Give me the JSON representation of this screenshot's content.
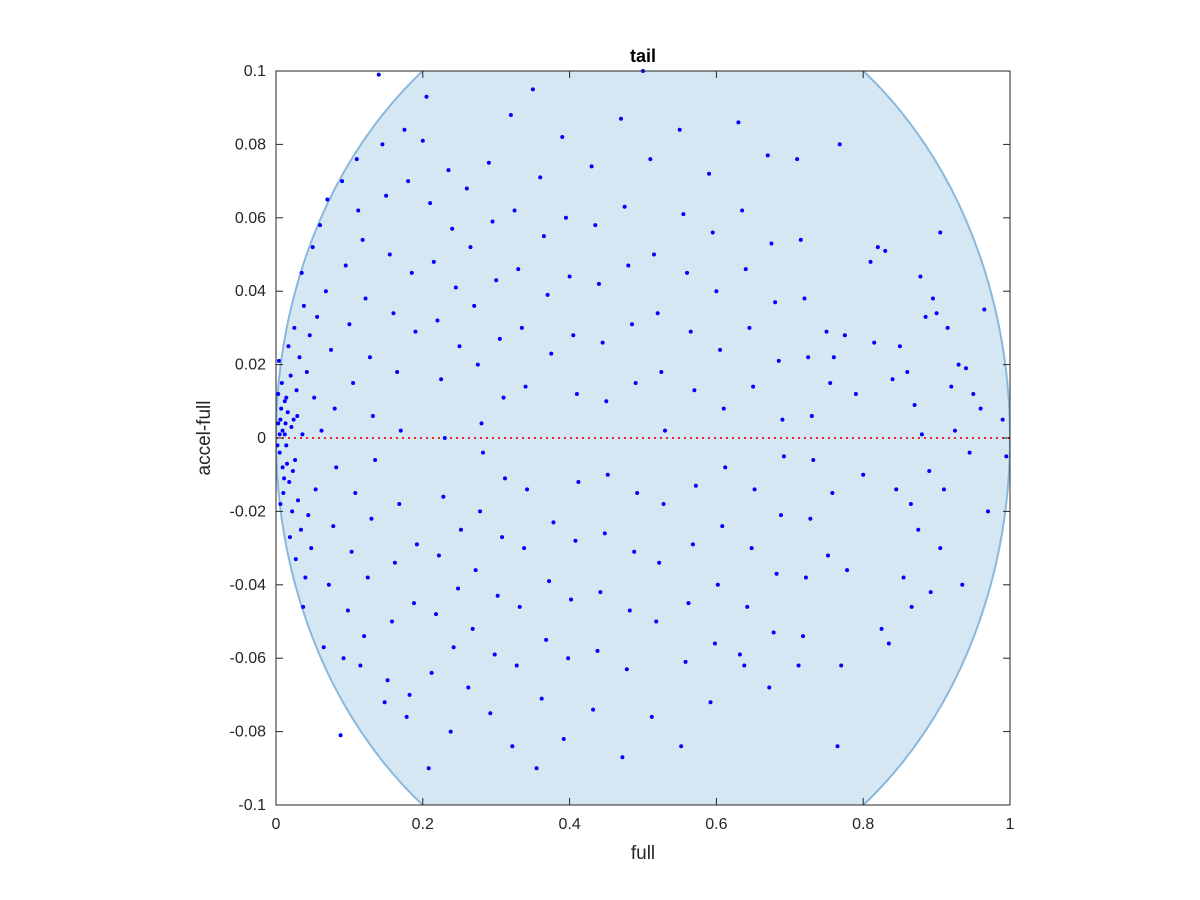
{
  "chart_data": {
    "type": "scatter",
    "title": "tail",
    "xlabel": "full",
    "ylabel": "accel-full",
    "xlim": [
      0,
      1
    ],
    "ylim": [
      -0.1,
      0.1
    ],
    "xticks": [
      0,
      0.2,
      0.4,
      0.6,
      0.8,
      1
    ],
    "xtick_labels": [
      "0",
      "0.2",
      "0.4",
      "0.6",
      "0.8",
      "1"
    ],
    "yticks": [
      -0.1,
      -0.08,
      -0.06,
      -0.04,
      -0.02,
      0,
      0.02,
      0.04,
      0.06,
      0.08,
      0.1
    ],
    "ytick_labels": [
      "-0.1",
      "-0.08",
      "-0.06",
      "-0.04",
      "-0.02",
      "0",
      "0.02",
      "0.04",
      "0.06",
      "0.08",
      "0.1"
    ],
    "grid": false,
    "region": {
      "shape": "ellipse",
      "center": [
        0.5,
        0.0
      ],
      "x_radius": 0.5,
      "y_radius": 0.125
    },
    "reference_line": {
      "y": 0,
      "style": "dotted"
    },
    "points": [
      [
        0.003,
        0.012
      ],
      [
        0.005,
        -0.004
      ],
      [
        0.007,
        0.008
      ],
      [
        0.009,
        0.002
      ],
      [
        0.011,
        -0.011
      ],
      [
        0.004,
        0.021
      ],
      [
        0.006,
        -0.018
      ],
      [
        0.013,
        0.004
      ],
      [
        0.015,
        -0.007
      ],
      [
        0.008,
        0.015
      ],
      [
        0.01,
        -0.015
      ],
      [
        0.012,
        0.01
      ],
      [
        0.014,
        -0.002
      ],
      [
        0.016,
        0.007
      ],
      [
        0.018,
        -0.012
      ],
      [
        0.02,
        0.017
      ],
      [
        0.022,
        -0.02
      ],
      [
        0.017,
        0.025
      ],
      [
        0.019,
        -0.027
      ],
      [
        0.024,
        0.005
      ],
      [
        0.026,
        -0.006
      ],
      [
        0.028,
        0.013
      ],
      [
        0.03,
        -0.017
      ],
      [
        0.025,
        0.03
      ],
      [
        0.027,
        -0.033
      ],
      [
        0.032,
        0.022
      ],
      [
        0.034,
        -0.025
      ],
      [
        0.036,
        0.001
      ],
      [
        0.038,
        0.036
      ],
      [
        0.04,
        -0.038
      ],
      [
        0.035,
        0.045
      ],
      [
        0.037,
        -0.046
      ],
      [
        0.042,
        0.018
      ],
      [
        0.044,
        -0.021
      ],
      [
        0.046,
        0.028
      ],
      [
        0.048,
        -0.03
      ],
      [
        0.05,
        0.052
      ],
      [
        0.052,
        0.011
      ],
      [
        0.054,
        -0.014
      ],
      [
        0.056,
        0.033
      ],
      [
        0.005,
        0.001
      ],
      [
        0.006,
        0.005
      ],
      [
        0.002,
        -0.002
      ],
      [
        0.009,
        -0.008
      ],
      [
        0.003,
        0.004
      ],
      [
        0.012,
        0.001
      ],
      [
        0.014,
        0.011
      ],
      [
        0.021,
        0.003
      ],
      [
        0.023,
        -0.009
      ],
      [
        0.029,
        0.006
      ],
      [
        0.06,
        0.058
      ],
      [
        0.065,
        -0.057
      ],
      [
        0.07,
        0.065
      ],
      [
        0.068,
        0.04
      ],
      [
        0.072,
        -0.04
      ],
      [
        0.075,
        0.024
      ],
      [
        0.078,
        -0.024
      ],
      [
        0.08,
        0.008
      ],
      [
        0.082,
        -0.008
      ],
      [
        0.062,
        0.002
      ],
      [
        0.09,
        0.07
      ],
      [
        0.092,
        -0.06
      ],
      [
        0.088,
        -0.081
      ],
      [
        0.095,
        0.047
      ],
      [
        0.098,
        -0.047
      ],
      [
        0.1,
        0.031
      ],
      [
        0.103,
        -0.031
      ],
      [
        0.105,
        0.015
      ],
      [
        0.108,
        -0.015
      ],
      [
        0.11,
        0.076
      ],
      [
        0.112,
        0.062
      ],
      [
        0.115,
        -0.062
      ],
      [
        0.118,
        0.054
      ],
      [
        0.12,
        -0.054
      ],
      [
        0.122,
        0.038
      ],
      [
        0.125,
        -0.038
      ],
      [
        0.128,
        0.022
      ],
      [
        0.13,
        -0.022
      ],
      [
        0.132,
        0.006
      ],
      [
        0.135,
        -0.006
      ],
      [
        0.14,
        0.099
      ],
      [
        0.145,
        0.08
      ],
      [
        0.148,
        -0.072
      ],
      [
        0.15,
        0.066
      ],
      [
        0.152,
        -0.066
      ],
      [
        0.155,
        0.05
      ],
      [
        0.158,
        -0.05
      ],
      [
        0.16,
        0.034
      ],
      [
        0.162,
        -0.034
      ],
      [
        0.165,
        0.018
      ],
      [
        0.168,
        -0.018
      ],
      [
        0.17,
        0.002
      ],
      [
        0.175,
        0.084
      ],
      [
        0.178,
        -0.076
      ],
      [
        0.18,
        0.07
      ],
      [
        0.182,
        -0.07
      ],
      [
        0.185,
        0.045
      ],
      [
        0.188,
        -0.045
      ],
      [
        0.19,
        0.029
      ],
      [
        0.192,
        -0.029
      ],
      [
        0.2,
        0.081
      ],
      [
        0.205,
        0.093
      ],
      [
        0.208,
        -0.09
      ],
      [
        0.21,
        0.064
      ],
      [
        0.212,
        -0.064
      ],
      [
        0.215,
        0.048
      ],
      [
        0.218,
        -0.048
      ],
      [
        0.22,
        0.032
      ],
      [
        0.222,
        -0.032
      ],
      [
        0.225,
        0.016
      ],
      [
        0.228,
        -0.016
      ],
      [
        0.23,
        0.0
      ],
      [
        0.235,
        0.073
      ],
      [
        0.238,
        -0.08
      ],
      [
        0.24,
        0.057
      ],
      [
        0.242,
        -0.057
      ],
      [
        0.245,
        0.041
      ],
      [
        0.248,
        -0.041
      ],
      [
        0.25,
        0.025
      ],
      [
        0.252,
        -0.025
      ],
      [
        0.26,
        0.068
      ],
      [
        0.262,
        -0.068
      ],
      [
        0.265,
        0.052
      ],
      [
        0.268,
        -0.052
      ],
      [
        0.27,
        0.036
      ],
      [
        0.272,
        -0.036
      ],
      [
        0.275,
        0.02
      ],
      [
        0.278,
        -0.02
      ],
      [
        0.28,
        0.004
      ],
      [
        0.282,
        -0.004
      ],
      [
        0.29,
        0.075
      ],
      [
        0.292,
        -0.075
      ],
      [
        0.295,
        0.059
      ],
      [
        0.298,
        -0.059
      ],
      [
        0.3,
        0.043
      ],
      [
        0.302,
        -0.043
      ],
      [
        0.305,
        0.027
      ],
      [
        0.308,
        -0.027
      ],
      [
        0.31,
        0.011
      ],
      [
        0.312,
        -0.011
      ],
      [
        0.32,
        0.088
      ],
      [
        0.322,
        -0.084
      ],
      [
        0.325,
        0.062
      ],
      [
        0.328,
        -0.062
      ],
      [
        0.33,
        0.046
      ],
      [
        0.332,
        -0.046
      ],
      [
        0.335,
        0.03
      ],
      [
        0.338,
        -0.03
      ],
      [
        0.34,
        0.014
      ],
      [
        0.342,
        -0.014
      ],
      [
        0.35,
        0.095
      ],
      [
        0.355,
        -0.09
      ],
      [
        0.36,
        0.071
      ],
      [
        0.362,
        -0.071
      ],
      [
        0.365,
        0.055
      ],
      [
        0.368,
        -0.055
      ],
      [
        0.37,
        0.039
      ],
      [
        0.372,
        -0.039
      ],
      [
        0.375,
        0.023
      ],
      [
        0.378,
        -0.023
      ],
      [
        0.39,
        0.082
      ],
      [
        0.392,
        -0.082
      ],
      [
        0.395,
        0.06
      ],
      [
        0.398,
        -0.06
      ],
      [
        0.4,
        0.044
      ],
      [
        0.402,
        -0.044
      ],
      [
        0.405,
        0.028
      ],
      [
        0.408,
        -0.028
      ],
      [
        0.41,
        0.012
      ],
      [
        0.412,
        -0.012
      ],
      [
        0.43,
        0.074
      ],
      [
        0.432,
        -0.074
      ],
      [
        0.435,
        0.058
      ],
      [
        0.438,
        -0.058
      ],
      [
        0.44,
        0.042
      ],
      [
        0.442,
        -0.042
      ],
      [
        0.445,
        0.026
      ],
      [
        0.448,
        -0.026
      ],
      [
        0.45,
        0.01
      ],
      [
        0.452,
        -0.01
      ],
      [
        0.47,
        0.087
      ],
      [
        0.472,
        -0.087
      ],
      [
        0.475,
        0.063
      ],
      [
        0.478,
        -0.063
      ],
      [
        0.48,
        0.047
      ],
      [
        0.482,
        -0.047
      ],
      [
        0.485,
        0.031
      ],
      [
        0.488,
        -0.031
      ],
      [
        0.49,
        0.015
      ],
      [
        0.492,
        -0.015
      ],
      [
        0.5,
        0.1
      ],
      [
        0.51,
        0.076
      ],
      [
        0.512,
        -0.076
      ],
      [
        0.515,
        0.05
      ],
      [
        0.518,
        -0.05
      ],
      [
        0.52,
        0.034
      ],
      [
        0.522,
        -0.034
      ],
      [
        0.525,
        0.018
      ],
      [
        0.528,
        -0.018
      ],
      [
        0.53,
        0.002
      ],
      [
        0.55,
        0.084
      ],
      [
        0.552,
        -0.084
      ],
      [
        0.555,
        0.061
      ],
      [
        0.558,
        -0.061
      ],
      [
        0.56,
        0.045
      ],
      [
        0.562,
        -0.045
      ],
      [
        0.565,
        0.029
      ],
      [
        0.568,
        -0.029
      ],
      [
        0.57,
        0.013
      ],
      [
        0.572,
        -0.013
      ],
      [
        0.59,
        0.072
      ],
      [
        0.592,
        -0.072
      ],
      [
        0.595,
        0.056
      ],
      [
        0.598,
        -0.056
      ],
      [
        0.6,
        0.04
      ],
      [
        0.602,
        -0.04
      ],
      [
        0.605,
        0.024
      ],
      [
        0.608,
        -0.024
      ],
      [
        0.61,
        0.008
      ],
      [
        0.612,
        -0.008
      ],
      [
        0.63,
        0.086
      ],
      [
        0.632,
        -0.059
      ],
      [
        0.635,
        0.062
      ],
      [
        0.638,
        -0.062
      ],
      [
        0.64,
        0.046
      ],
      [
        0.642,
        -0.046
      ],
      [
        0.645,
        0.03
      ],
      [
        0.648,
        -0.03
      ],
      [
        0.65,
        0.014
      ],
      [
        0.652,
        -0.014
      ],
      [
        0.67,
        0.077
      ],
      [
        0.672,
        -0.068
      ],
      [
        0.675,
        0.053
      ],
      [
        0.678,
        -0.053
      ],
      [
        0.68,
        0.037
      ],
      [
        0.682,
        -0.037
      ],
      [
        0.685,
        0.021
      ],
      [
        0.688,
        -0.021
      ],
      [
        0.69,
        0.005
      ],
      [
        0.692,
        -0.005
      ],
      [
        0.71,
        0.076
      ],
      [
        0.712,
        -0.062
      ],
      [
        0.715,
        0.054
      ],
      [
        0.718,
        -0.054
      ],
      [
        0.72,
        0.038
      ],
      [
        0.722,
        -0.038
      ],
      [
        0.725,
        0.022
      ],
      [
        0.728,
        -0.022
      ],
      [
        0.73,
        0.006
      ],
      [
        0.732,
        -0.006
      ],
      [
        0.75,
        0.029
      ],
      [
        0.752,
        -0.032
      ],
      [
        0.755,
        0.015
      ],
      [
        0.758,
        -0.015
      ],
      [
        0.76,
        0.022
      ],
      [
        0.765,
        -0.084
      ],
      [
        0.768,
        0.08
      ],
      [
        0.77,
        -0.062
      ],
      [
        0.775,
        0.028
      ],
      [
        0.778,
        -0.036
      ],
      [
        0.79,
        0.012
      ],
      [
        0.8,
        -0.01
      ],
      [
        0.81,
        0.048
      ],
      [
        0.815,
        0.026
      ],
      [
        0.82,
        0.052
      ],
      [
        0.825,
        -0.052
      ],
      [
        0.83,
        0.051
      ],
      [
        0.835,
        -0.056
      ],
      [
        0.84,
        0.016
      ],
      [
        0.845,
        -0.014
      ],
      [
        0.85,
        0.025
      ],
      [
        0.855,
        -0.038
      ],
      [
        0.86,
        0.018
      ],
      [
        0.865,
        -0.018
      ],
      [
        0.87,
        0.009
      ],
      [
        0.875,
        -0.025
      ],
      [
        0.88,
        0.001
      ],
      [
        0.885,
        0.033
      ],
      [
        0.89,
        -0.009
      ],
      [
        0.895,
        0.038
      ],
      [
        0.9,
        0.034
      ],
      [
        0.905,
        0.056
      ],
      [
        0.91,
        -0.014
      ],
      [
        0.92,
        0.014
      ],
      [
        0.925,
        0.002
      ],
      [
        0.93,
        0.02
      ],
      [
        0.94,
        0.019
      ],
      [
        0.95,
        0.012
      ],
      [
        0.965,
        0.035
      ],
      [
        0.99,
        0.005
      ],
      [
        0.995,
        -0.005
      ],
      [
        0.97,
        -0.02
      ],
      [
        0.96,
        0.008
      ],
      [
        0.945,
        -0.004
      ],
      [
        0.935,
        -0.04
      ],
      [
        0.915,
        0.03
      ],
      [
        0.905,
        -0.03
      ],
      [
        0.892,
        -0.042
      ],
      [
        0.878,
        0.044
      ],
      [
        0.866,
        -0.046
      ]
    ],
    "colors": {
      "points": "#0000ff",
      "region_fill": "#d6e7f4",
      "region_edge": "#8ab8dc",
      "reference_line": "#e52a2a",
      "axis": "#262626"
    }
  }
}
